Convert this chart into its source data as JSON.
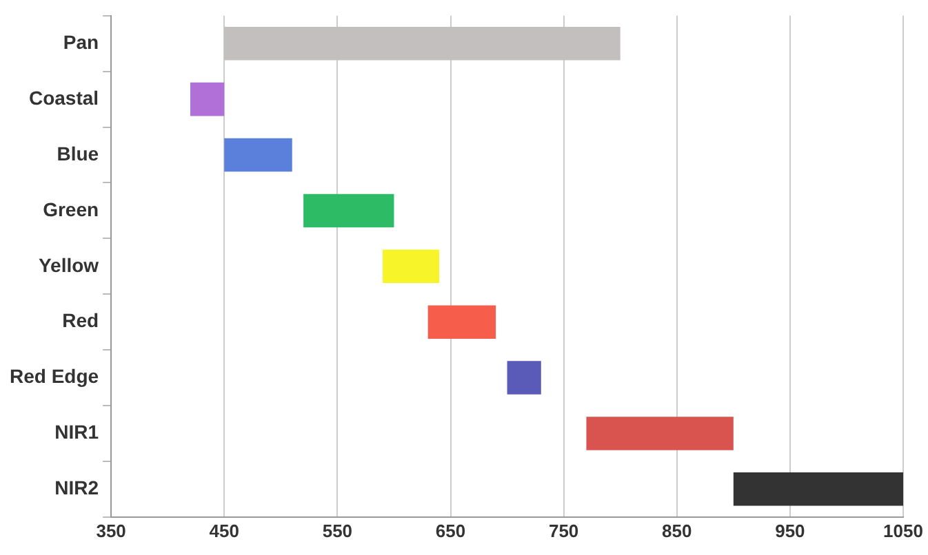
{
  "chart_data": {
    "type": "bar",
    "orientation": "horizontal",
    "categories": [
      "Pan",
      "Coastal",
      "Blue",
      "Green",
      "Yellow",
      "Red",
      "Red Edge",
      "NIR1",
      "NIR2"
    ],
    "base": [
      450,
      420,
      450,
      520,
      590,
      630,
      700,
      770,
      900
    ],
    "values": [
      350,
      30,
      60,
      80,
      50,
      60,
      30,
      130,
      150
    ],
    "colors": [
      "#c3bfbf",
      "#b070d8",
      "#5b80dc",
      "#2dbb66",
      "#f7f52a",
      "#f65d4a",
      "#5a5ab8",
      "#d9534f",
      "#333333"
    ],
    "xlim": [
      350,
      1050
    ],
    "xticks": [
      350,
      450,
      550,
      650,
      750,
      850,
      950,
      1050
    ],
    "grid": "x"
  }
}
